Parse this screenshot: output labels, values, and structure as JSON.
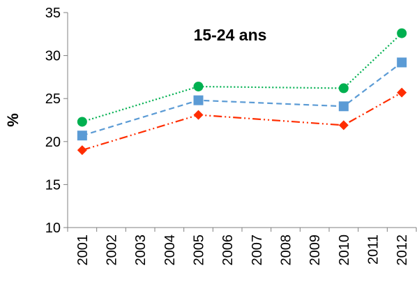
{
  "chart_data": {
    "type": "line",
    "title": "15-24 ans",
    "xlabel": "",
    "ylabel": "%",
    "ylim": [
      10,
      35
    ],
    "yticks": [
      "10",
      "15",
      "20",
      "25",
      "30",
      "35"
    ],
    "categories": [
      "2001",
      "2002",
      "2003",
      "2004",
      "2005",
      "2006",
      "2007",
      "2008",
      "2009",
      "2010",
      "2011",
      "2012"
    ],
    "grid": false,
    "legend": "none",
    "series": [
      {
        "color": "#00B050",
        "marker": "circle",
        "line_style": "dotted",
        "points": [
          [
            2001,
            22.3
          ],
          [
            2005,
            26.4
          ],
          [
            2010,
            26.2
          ],
          [
            2012,
            32.6
          ]
        ]
      },
      {
        "color": "#5B9BD5",
        "marker": "square",
        "line_style": "dashed",
        "points": [
          [
            2001,
            20.7
          ],
          [
            2005,
            24.8
          ],
          [
            2010,
            24.1
          ],
          [
            2012,
            29.2
          ]
        ]
      },
      {
        "color": "#FF2D00",
        "marker": "diamond",
        "line_style": "dash-dot-dot",
        "points": [
          [
            2001,
            19.0
          ],
          [
            2005,
            23.1
          ],
          [
            2010,
            21.9
          ],
          [
            2012,
            25.7
          ]
        ]
      }
    ]
  }
}
